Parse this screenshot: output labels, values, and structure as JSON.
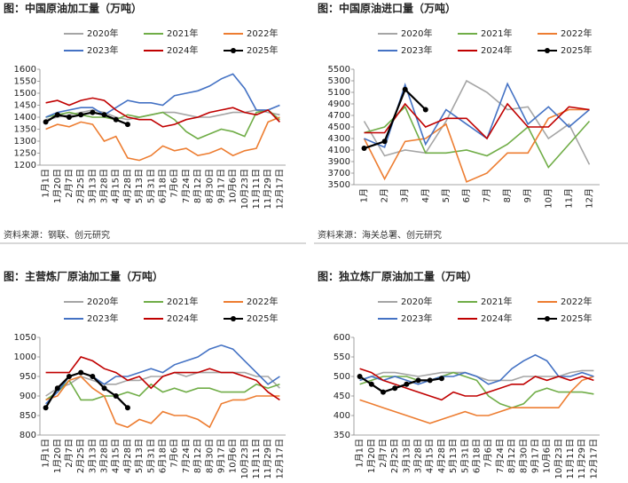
{
  "chart_data": [
    {
      "type": "line",
      "title": "图：中国原油加工量（万吨）",
      "source": "资料来源：钢联、创元研究",
      "categories": [
        "1月1日",
        "1月20日",
        "2月7日",
        "2月25日",
        "3月13日",
        "3月28日",
        "4月15日",
        "4月28日",
        "5月13日",
        "5月31日",
        "6月18日",
        "7月6日",
        "7月24日",
        "8月12日",
        "8月30日",
        "9月17日",
        "10月6日",
        "10月23日",
        "11月11日",
        "11月29日",
        "12月17日"
      ],
      "ylim": [
        1200,
        1600
      ],
      "yticks": [
        1200,
        1250,
        1300,
        1350,
        1400,
        1450,
        1500,
        1550,
        1600
      ],
      "series": [
        {
          "name": "2020年",
          "color": "#a5a5a5",
          "values": [
            1390,
            1400,
            1410,
            1420,
            1430,
            1420,
            1400,
            1390,
            1400,
            1410,
            1420,
            1420,
            1410,
            1400,
            1400,
            1410,
            1420,
            1420,
            1430,
            1420,
            1410
          ]
        },
        {
          "name": "2021年",
          "color": "#70ad47",
          "values": [
            1400,
            1410,
            1420,
            1410,
            1400,
            1400,
            1390,
            1410,
            1400,
            1410,
            1420,
            1390,
            1340,
            1310,
            1330,
            1350,
            1340,
            1320,
            1420,
            1430,
            1390
          ]
        },
        {
          "name": "2022年",
          "color": "#ed7d31",
          "values": [
            1350,
            1370,
            1360,
            1380,
            1370,
            1300,
            1320,
            1230,
            1220,
            1240,
            1280,
            1260,
            1270,
            1240,
            1250,
            1270,
            1240,
            1260,
            1270,
            1380,
            1400
          ]
        },
        {
          "name": "2023年",
          "color": "#4472c4",
          "values": [
            1400,
            1420,
            1430,
            1440,
            1440,
            1410,
            1440,
            1470,
            1460,
            1460,
            1450,
            1490,
            1500,
            1510,
            1530,
            1560,
            1580,
            1520,
            1430,
            1430,
            1450
          ]
        },
        {
          "name": "2024年",
          "color": "#c00000",
          "values": [
            1460,
            1470,
            1450,
            1470,
            1480,
            1470,
            1430,
            1400,
            1390,
            1390,
            1360,
            1370,
            1390,
            1400,
            1420,
            1430,
            1440,
            1420,
            1410,
            1430,
            1380
          ]
        },
        {
          "name": "2025年",
          "color": "#000000",
          "values": [
            1380,
            1410,
            1400,
            1410,
            1420,
            1410,
            1390,
            1370,
            null,
            null,
            null,
            null,
            null,
            null,
            null,
            null,
            null,
            null,
            null,
            null,
            null
          ]
        }
      ]
    },
    {
      "type": "line",
      "title": "图：中国原油进口量（万吨）",
      "source": "资料来源：海关总署、创元研究",
      "categories": [
        "1月",
        "2月",
        "3月",
        "4月",
        "5月",
        "6月",
        "7月",
        "8月",
        "9月",
        "10月",
        "11月",
        "12月"
      ],
      "ylim": [
        3500,
        5500
      ],
      "yticks": [
        3500,
        3700,
        3900,
        4100,
        4300,
        4500,
        4700,
        4900,
        5100,
        5300,
        5500
      ],
      "series": [
        {
          "name": "2020年",
          "color": "#a5a5a5",
          "values": [
            4600,
            4000,
            4100,
            4050,
            4600,
            5300,
            5100,
            4800,
            4850,
            4300,
            4550,
            3850
          ]
        },
        {
          "name": "2021年",
          "color": "#70ad47",
          "values": [
            4400,
            4500,
            4850,
            4050,
            4050,
            4100,
            4000,
            4200,
            4500,
            3800,
            4200,
            4600
          ]
        },
        {
          "name": "2022年",
          "color": "#ed7d31",
          "values": [
            4300,
            3600,
            4250,
            4300,
            4550,
            3550,
            3700,
            4050,
            4050,
            4650,
            4800,
            4800
          ]
        },
        {
          "name": "2023年",
          "color": "#4472c4",
          "values": [
            4300,
            4150,
            5230,
            4200,
            4800,
            4550,
            4300,
            5250,
            4550,
            4850,
            4500,
            4800
          ]
        },
        {
          "name": "2024年",
          "color": "#c00000",
          "values": [
            4400,
            4400,
            4900,
            4500,
            4650,
            4650,
            4300,
            4900,
            4500,
            4500,
            4850,
            4800
          ]
        },
        {
          "name": "2025年",
          "color": "#000000",
          "values": [
            4130,
            4250,
            5150,
            4800,
            null,
            null,
            null,
            null,
            null,
            null,
            null,
            null
          ]
        }
      ]
    },
    {
      "type": "line",
      "title": "图：主营炼厂原油加工量（万吨）",
      "categories": [
        "1月1日",
        "1月20日",
        "2月7日",
        "2月25日",
        "3月13日",
        "3月28日",
        "4月15日",
        "4月28日",
        "5月13日",
        "5月31日",
        "6月18日",
        "7月6日",
        "7月24日",
        "8月12日",
        "8月30日",
        "9月17日",
        "10月6日",
        "10月23日",
        "11月11日",
        "11月29日",
        "12月17日"
      ],
      "ylim": [
        800,
        1050
      ],
      "yticks": [
        800,
        850,
        900,
        950,
        1000,
        1050
      ],
      "series": [
        {
          "name": "2020年",
          "color": "#a5a5a5",
          "values": [
            900,
            920,
            930,
            950,
            940,
            930,
            930,
            940,
            940,
            950,
            950,
            960,
            950,
            960,
            960,
            960,
            960,
            960,
            950,
            950,
            920
          ]
        },
        {
          "name": "2021年",
          "color": "#70ad47",
          "values": [
            890,
            910,
            940,
            890,
            890,
            900,
            900,
            910,
            900,
            930,
            910,
            920,
            910,
            920,
            920,
            910,
            910,
            910,
            930,
            920,
            930
          ]
        },
        {
          "name": "2022年",
          "color": "#ed7d31",
          "values": [
            890,
            900,
            940,
            950,
            920,
            900,
            830,
            820,
            840,
            830,
            860,
            850,
            850,
            840,
            820,
            880,
            890,
            890,
            900,
            900,
            900
          ]
        },
        {
          "name": "2023年",
          "color": "#4472c4",
          "values": [
            880,
            910,
            950,
            960,
            950,
            930,
            950,
            950,
            960,
            970,
            960,
            980,
            990,
            1000,
            1020,
            1030,
            1020,
            990,
            960,
            930,
            950
          ]
        },
        {
          "name": "2024年",
          "color": "#c00000",
          "values": [
            960,
            960,
            960,
            1000,
            990,
            970,
            960,
            940,
            950,
            920,
            950,
            960,
            960,
            960,
            970,
            960,
            960,
            950,
            940,
            910,
            890
          ]
        },
        {
          "name": "2025年",
          "color": "#000000",
          "values": [
            870,
            920,
            950,
            960,
            950,
            920,
            900,
            870,
            null,
            null,
            null,
            null,
            null,
            null,
            null,
            null,
            null,
            null,
            null,
            null,
            null
          ]
        }
      ]
    },
    {
      "type": "line",
      "title": "图：独立炼厂原油加工量（万吨）",
      "categories": [
        "1月1日",
        "1月20日",
        "2月7日",
        "2月25日",
        "3月13日",
        "3月28日",
        "4月15日",
        "4月28日",
        "5月13日",
        "5月31日",
        "6月18日",
        "7月6日",
        "7月24日",
        "8月12日",
        "8月30日",
        "9月17日",
        "10月6日",
        "10月23日",
        "11月11日",
        "11月29日",
        "12月17日"
      ],
      "ylim": [
        350,
        600
      ],
      "yticks": [
        350,
        400,
        450,
        500,
        550,
        600
      ],
      "series": [
        {
          "name": "2020年",
          "color": "#a5a5a5",
          "values": [
            490,
            500,
            510,
            510,
            505,
            500,
            505,
            510,
            510,
            510,
            500,
            490,
            490,
            490,
            500,
            500,
            500,
            500,
            510,
            515,
            515
          ]
        },
        {
          "name": "2021年",
          "color": "#70ad47",
          "values": [
            480,
            490,
            500,
            500,
            500,
            490,
            490,
            500,
            510,
            500,
            490,
            450,
            430,
            420,
            430,
            460,
            470,
            460,
            460,
            460,
            455
          ]
        },
        {
          "name": "2022年",
          "color": "#ed7d31",
          "values": [
            440,
            430,
            420,
            410,
            400,
            390,
            380,
            390,
            400,
            410,
            400,
            400,
            410,
            420,
            420,
            420,
            420,
            420,
            460,
            490,
            500
          ]
        },
        {
          "name": "2023年",
          "color": "#4472c4",
          "values": [
            490,
            500,
            490,
            500,
            490,
            480,
            490,
            500,
            500,
            510,
            500,
            480,
            490,
            520,
            540,
            555,
            540,
            500,
            500,
            510,
            500
          ]
        },
        {
          "name": "2024年",
          "color": "#c00000",
          "values": [
            520,
            510,
            490,
            480,
            470,
            460,
            450,
            440,
            460,
            450,
            450,
            460,
            470,
            480,
            480,
            500,
            490,
            500,
            490,
            500,
            490
          ]
        },
        {
          "name": "2025年",
          "color": "#000000",
          "values": [
            500,
            480,
            460,
            470,
            480,
            490,
            490,
            495,
            null,
            null,
            null,
            null,
            null,
            null,
            null,
            null,
            null,
            null,
            null,
            null,
            null
          ]
        }
      ]
    }
  ]
}
